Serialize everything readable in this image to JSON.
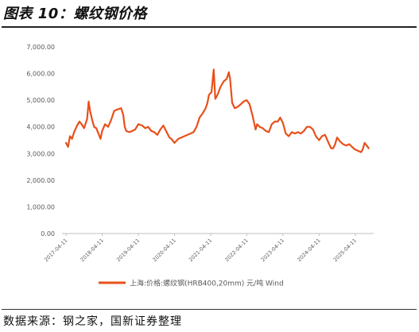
{
  "title": "图表 10：螺纹钢价格",
  "source": "数据来源：钢之家，国新证券整理",
  "colors": {
    "series": "#e8501a",
    "axis": "#bfbfbf",
    "text": "#595959"
  },
  "chart_data": {
    "type": "line",
    "ylim": [
      0,
      7000
    ],
    "y_ticks": [
      {
        "value": 0,
        "label": "0.00"
      },
      {
        "value": 1000,
        "label": "1,000.00"
      },
      {
        "value": 2000,
        "label": "2,000.00"
      },
      {
        "value": 3000,
        "label": "3,000.00"
      },
      {
        "value": 4000,
        "label": "4,000.00"
      },
      {
        "value": 5000,
        "label": "5,000.00"
      },
      {
        "value": 6000,
        "label": "6,000.00"
      },
      {
        "value": 7000,
        "label": "7,000.00"
      }
    ],
    "x_ticks": [
      "2017-04-11",
      "2018-04-11",
      "2019-04-11",
      "2020-04-11",
      "2021-04-11",
      "2022-04-11",
      "2023-04-11",
      "2024-04-11",
      "2025-04-11"
    ],
    "grid": false,
    "legend_position": "bottom",
    "series": [
      {
        "name": "上海:价格:螺纹钢(HRB400,20mm) 元/吨 Wind",
        "points": [
          [
            "2017-04-11",
            3400
          ],
          [
            "2017-05-01",
            3250
          ],
          [
            "2017-05-20",
            3650
          ],
          [
            "2017-06-10",
            3550
          ],
          [
            "2017-07-01",
            3800
          ],
          [
            "2017-08-01",
            4050
          ],
          [
            "2017-08-25",
            4200
          ],
          [
            "2017-09-15",
            4100
          ],
          [
            "2017-10-10",
            3950
          ],
          [
            "2017-11-10",
            4300
          ],
          [
            "2017-11-25",
            4950
          ],
          [
            "2017-12-10",
            4600
          ],
          [
            "2017-12-31",
            4250
          ],
          [
            "2018-01-20",
            4000
          ],
          [
            "2018-02-10",
            3950
          ],
          [
            "2018-03-10",
            3700
          ],
          [
            "2018-03-25",
            3550
          ],
          [
            "2018-04-11",
            3850
          ],
          [
            "2018-05-10",
            4100
          ],
          [
            "2018-06-10",
            4000
          ],
          [
            "2018-07-10",
            4250
          ],
          [
            "2018-08-10",
            4600
          ],
          [
            "2018-09-10",
            4650
          ],
          [
            "2018-10-20",
            4700
          ],
          [
            "2018-11-10",
            4450
          ],
          [
            "2018-11-25",
            4000
          ],
          [
            "2018-12-10",
            3850
          ],
          [
            "2019-01-10",
            3800
          ],
          [
            "2019-02-10",
            3850
          ],
          [
            "2019-03-10",
            3900
          ],
          [
            "2019-04-11",
            4100
          ],
          [
            "2019-05-20",
            4050
          ],
          [
            "2019-06-20",
            3950
          ],
          [
            "2019-07-20",
            4000
          ],
          [
            "2019-08-20",
            3850
          ],
          [
            "2019-09-20",
            3800
          ],
          [
            "2019-10-20",
            3700
          ],
          [
            "2019-11-20",
            3900
          ],
          [
            "2019-12-20",
            4050
          ],
          [
            "2020-01-10",
            3900
          ],
          [
            "2020-02-20",
            3600
          ],
          [
            "2020-03-10",
            3550
          ],
          [
            "2020-04-11",
            3400
          ],
          [
            "2020-05-20",
            3550
          ],
          [
            "2020-06-20",
            3600
          ],
          [
            "2020-07-20",
            3650
          ],
          [
            "2020-08-20",
            3700
          ],
          [
            "2020-09-20",
            3750
          ],
          [
            "2020-10-20",
            3800
          ],
          [
            "2020-11-20",
            4000
          ],
          [
            "2020-12-20",
            4350
          ],
          [
            "2021-01-20",
            4500
          ],
          [
            "2021-02-20",
            4700
          ],
          [
            "2021-03-10",
            4900
          ],
          [
            "2021-03-25",
            5200
          ],
          [
            "2021-04-20",
            5300
          ],
          [
            "2021-05-12",
            6150
          ],
          [
            "2021-05-28",
            5050
          ],
          [
            "2021-06-20",
            5200
          ],
          [
            "2021-07-20",
            5500
          ],
          [
            "2021-08-20",
            5700
          ],
          [
            "2021-09-20",
            5800
          ],
          [
            "2021-10-12",
            6050
          ],
          [
            "2021-10-25",
            5800
          ],
          [
            "2021-11-15",
            4900
          ],
          [
            "2021-12-10",
            4700
          ],
          [
            "2022-01-10",
            4750
          ],
          [
            "2022-02-10",
            4850
          ],
          [
            "2022-03-10",
            4950
          ],
          [
            "2022-04-11",
            5000
          ],
          [
            "2022-05-10",
            4850
          ],
          [
            "2022-06-10",
            4400
          ],
          [
            "2022-07-10",
            3900
          ],
          [
            "2022-07-25",
            4100
          ],
          [
            "2022-08-20",
            4000
          ],
          [
            "2022-09-20",
            3950
          ],
          [
            "2022-10-20",
            3850
          ],
          [
            "2022-11-20",
            3800
          ],
          [
            "2022-12-20",
            4100
          ],
          [
            "2023-01-20",
            4200
          ],
          [
            "2023-02-20",
            4200
          ],
          [
            "2023-03-15",
            4350
          ],
          [
            "2023-04-11",
            4150
          ],
          [
            "2023-05-10",
            3750
          ],
          [
            "2023-06-10",
            3650
          ],
          [
            "2023-07-10",
            3800
          ],
          [
            "2023-08-10",
            3750
          ],
          [
            "2023-09-10",
            3800
          ],
          [
            "2023-10-10",
            3750
          ],
          [
            "2023-11-10",
            3850
          ],
          [
            "2023-12-10",
            4000
          ],
          [
            "2024-01-10",
            4000
          ],
          [
            "2024-02-10",
            3900
          ],
          [
            "2024-03-10",
            3650
          ],
          [
            "2024-04-11",
            3500
          ],
          [
            "2024-05-10",
            3650
          ],
          [
            "2024-06-10",
            3700
          ],
          [
            "2024-07-10",
            3450
          ],
          [
            "2024-08-10",
            3200
          ],
          [
            "2024-09-01",
            3200
          ],
          [
            "2024-09-20",
            3350
          ],
          [
            "2024-10-10",
            3600
          ],
          [
            "2024-11-10",
            3450
          ],
          [
            "2024-12-10",
            3350
          ],
          [
            "2025-01-10",
            3300
          ],
          [
            "2025-02-10",
            3350
          ],
          [
            "2025-03-10",
            3250
          ],
          [
            "2025-04-11",
            3150
          ],
          [
            "2025-05-10",
            3100
          ],
          [
            "2025-06-10",
            3050
          ],
          [
            "2025-06-25",
            3150
          ],
          [
            "2025-07-15",
            3400
          ],
          [
            "2025-08-05",
            3300
          ],
          [
            "2025-08-25",
            3200
          ]
        ]
      }
    ]
  }
}
